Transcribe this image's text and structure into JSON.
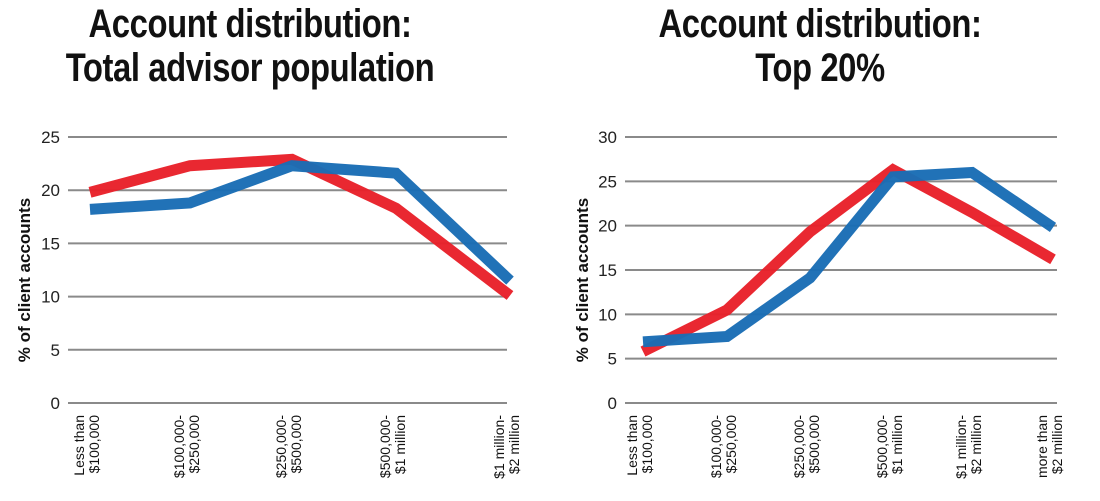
{
  "colors": {
    "red": "#e8212a",
    "blue": "#1a6db5",
    "grid": "#8a8a8a"
  },
  "chart_data": [
    {
      "type": "line",
      "title": "Account distribution: Total advisor population",
      "title_lines": [
        "Account distribution:",
        "Total advisor population"
      ],
      "ylabel": "% of client accounts",
      "ylim": [
        0,
        25
      ],
      "yticks": [
        0,
        5,
        10,
        15,
        20,
        25
      ],
      "categories": [
        [
          "Less than",
          "$100,000"
        ],
        [
          "$100,000-",
          "$250,000"
        ],
        [
          "$250,000-",
          "$500,000"
        ],
        [
          "$500,000-",
          "$1 million"
        ],
        [
          "$1 million-",
          "$2 million"
        ]
      ],
      "series": [
        {
          "name": "red",
          "color": "#e8212a",
          "values": [
            19.8,
            22.3,
            22.9,
            18.3,
            10.1
          ]
        },
        {
          "name": "blue",
          "color": "#1a6db5",
          "values": [
            18.2,
            18.8,
            22.3,
            21.6,
            11.5
          ]
        }
      ],
      "grid": true
    },
    {
      "type": "line",
      "title": "Account distribution: Top 20%",
      "title_lines": [
        "Account distribution:",
        "Top 20%"
      ],
      "ylabel": "% of client accounts",
      "ylim": [
        0,
        30
      ],
      "yticks": [
        0,
        5,
        10,
        15,
        20,
        25,
        30
      ],
      "categories": [
        [
          "Less than",
          "$100,000"
        ],
        [
          "$100,000-",
          "$250,000"
        ],
        [
          "$250,000-",
          "$500,000"
        ],
        [
          "$500,000-",
          "$1 million"
        ],
        [
          "$1 million-",
          "$2 million"
        ],
        [
          "more than",
          "$2 million"
        ]
      ],
      "series": [
        {
          "name": "red",
          "color": "#e8212a",
          "values": [
            5.8,
            10.5,
            19.3,
            26.3,
            21.5,
            16.2
          ]
        },
        {
          "name": "blue",
          "color": "#1a6db5",
          "values": [
            6.9,
            7.5,
            14.1,
            25.5,
            26.0,
            19.8
          ]
        }
      ],
      "grid": true
    }
  ]
}
